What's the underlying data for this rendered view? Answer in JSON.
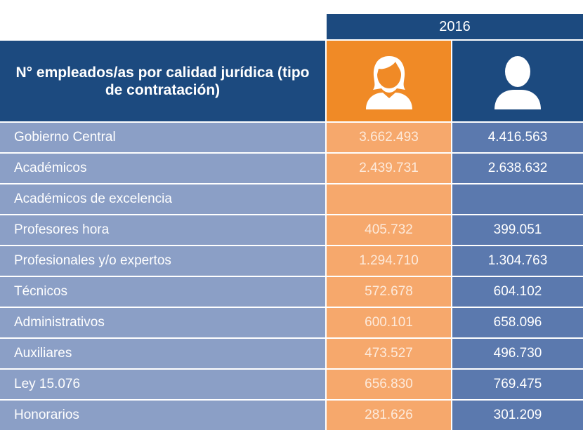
{
  "header": {
    "year": "2016",
    "label": "N° empleados/as por calidad jurídica (tipo de contratación)"
  },
  "table": {
    "rows": [
      [
        "Gobierno Central",
        "3.662.493",
        "4.416.563"
      ],
      [
        "Académicos",
        "2.439.731",
        "2.638.632"
      ],
      [
        "Académicos de excelencia",
        null,
        null
      ],
      [
        "Profesores hora",
        "405.732",
        "399.051"
      ],
      [
        "Profesionales y/o expertos",
        "1.294.710",
        "1.304.763"
      ],
      [
        "Técnicos",
        "572.678",
        "604.102"
      ],
      [
        "Administrativos",
        "600.101",
        "658.096"
      ],
      [
        "Auxiliares",
        "473.527",
        "496.730"
      ],
      [
        "Ley 15.076",
        "656.830",
        "769.475"
      ],
      [
        "Honorarios",
        "281.626",
        "301.209"
      ]
    ]
  }
}
